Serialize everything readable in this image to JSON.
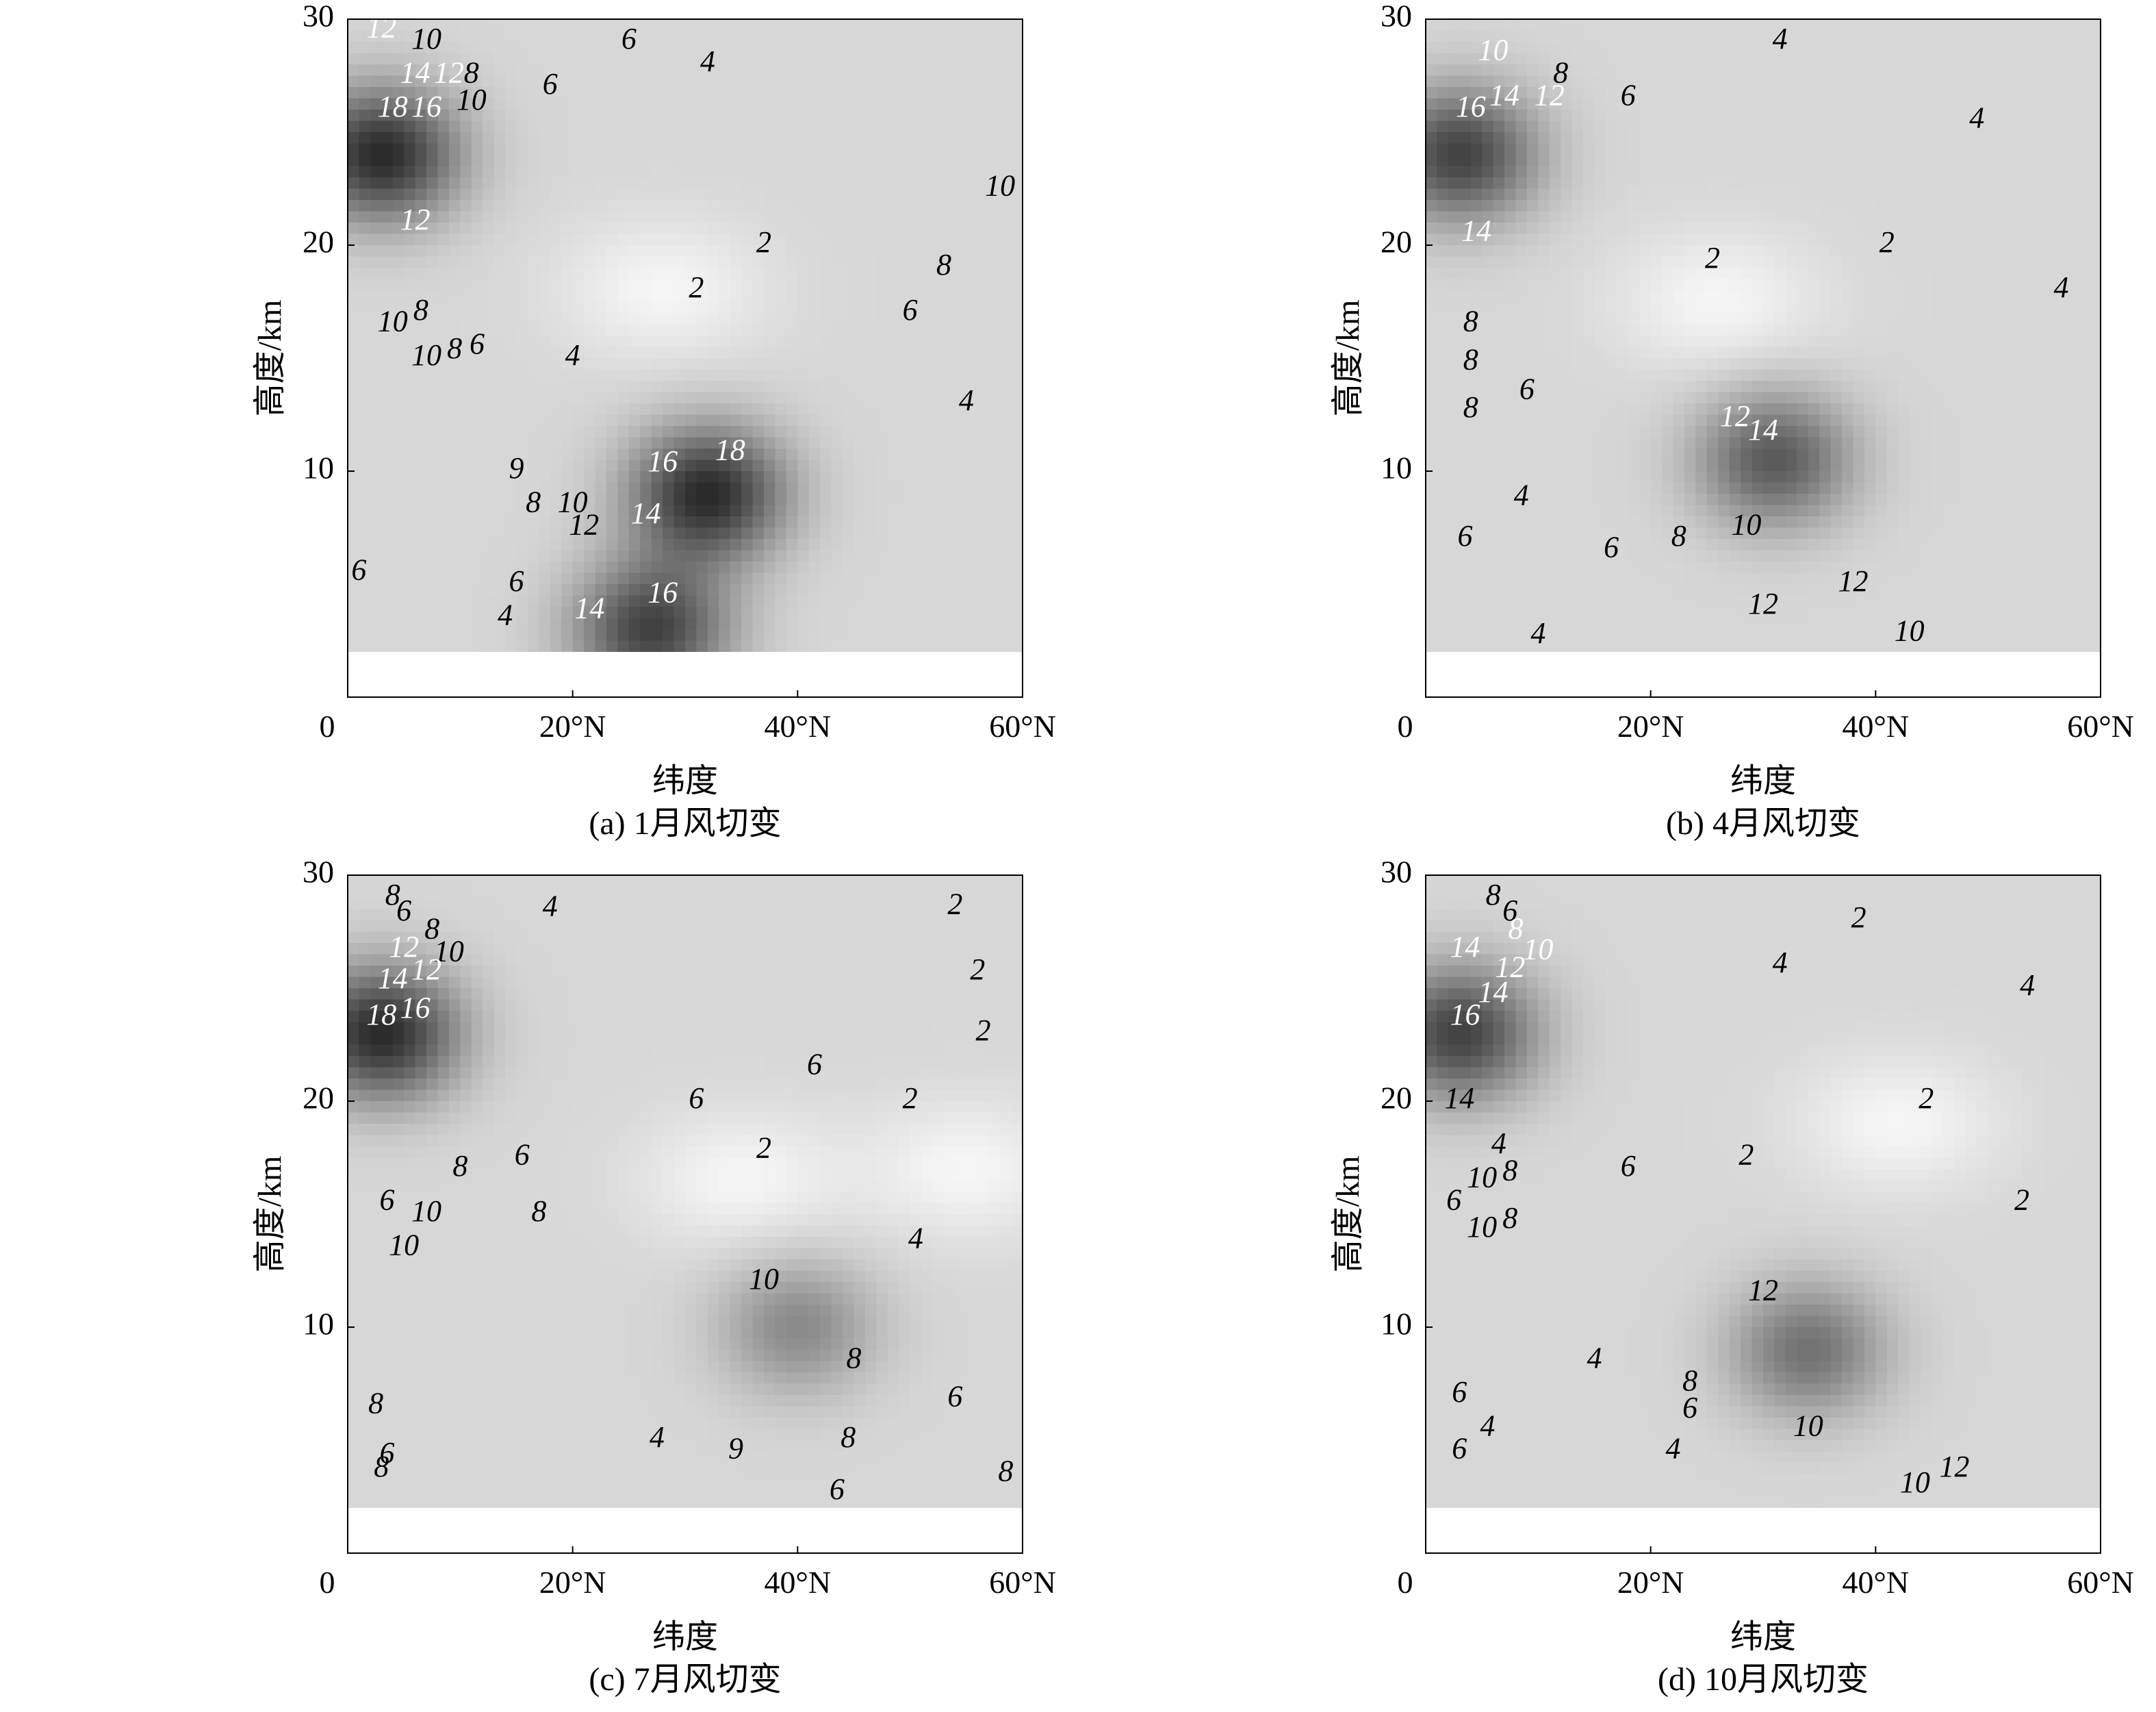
{
  "chart_data": [
    {
      "type": "contour",
      "caption": "(a) 1月风切变",
      "xlabel": "纬度",
      "ylabel": "高度/km",
      "xlim": [
        0,
        60
      ],
      "ylim": [
        0,
        30
      ],
      "xticks": [
        "0",
        "20°N",
        "40°N",
        "60°N"
      ],
      "yticks": [
        "10",
        "20",
        "30"
      ],
      "contour_levels": [
        2,
        4,
        6,
        8,
        10,
        12,
        14,
        16,
        18
      ],
      "maxima": [
        {
          "lat": 3,
          "alt": 24,
          "value": 18
        },
        {
          "lat": 32,
          "alt": 9,
          "value": 18
        },
        {
          "lat": 27,
          "alt": 3,
          "value": 16
        }
      ],
      "minima": [
        {
          "lat": 28,
          "alt": 18,
          "value": 2
        }
      ],
      "labels": [
        {
          "text": "12",
          "lat": 3,
          "alt": 29.5,
          "light": true
        },
        {
          "text": "10",
          "lat": 7,
          "alt": 29,
          "light": false
        },
        {
          "text": "6",
          "lat": 25,
          "alt": 29,
          "light": false
        },
        {
          "text": "14",
          "lat": 6,
          "alt": 27.5,
          "light": true
        },
        {
          "text": "12",
          "lat": 9,
          "alt": 27.5,
          "light": true
        },
        {
          "text": "8",
          "lat": 11,
          "alt": 27.5,
          "light": false
        },
        {
          "text": "4",
          "lat": 32,
          "alt": 28,
          "light": false
        },
        {
          "text": "6",
          "lat": 18,
          "alt": 27,
          "light": false
        },
        {
          "text": "18",
          "lat": 4,
          "alt": 26,
          "light": true
        },
        {
          "text": "16",
          "lat": 7,
          "alt": 26,
          "light": true
        },
        {
          "text": "10",
          "lat": 11,
          "alt": 26.3,
          "light": false
        },
        {
          "text": "10",
          "lat": 58,
          "alt": 22.5,
          "light": false
        },
        {
          "text": "12",
          "lat": 6,
          "alt": 21,
          "light": true
        },
        {
          "text": "2",
          "lat": 37,
          "alt": 20,
          "light": false
        },
        {
          "text": "8",
          "lat": 53,
          "alt": 19,
          "light": false
        },
        {
          "text": "2",
          "lat": 31,
          "alt": 18,
          "light": false
        },
        {
          "text": "10",
          "lat": 4,
          "alt": 16.5,
          "light": false
        },
        {
          "text": "8",
          "lat": 6.5,
          "alt": 17,
          "light": false
        },
        {
          "text": "6",
          "lat": 50,
          "alt": 17,
          "light": false
        },
        {
          "text": "10",
          "lat": 7,
          "alt": 15,
          "light": false
        },
        {
          "text": "8",
          "lat": 9.5,
          "alt": 15.3,
          "light": false
        },
        {
          "text": "6",
          "lat": 11.5,
          "alt": 15.5,
          "light": false
        },
        {
          "text": "4",
          "lat": 20,
          "alt": 15,
          "light": false
        },
        {
          "text": "4",
          "lat": 55,
          "alt": 13,
          "light": false
        },
        {
          "text": "16",
          "lat": 28,
          "alt": 10.3,
          "light": true
        },
        {
          "text": "18",
          "lat": 34,
          "alt": 10.8,
          "light": true
        },
        {
          "text": "9",
          "lat": 15,
          "alt": 10,
          "light": false
        },
        {
          "text": "14",
          "lat": 26.5,
          "alt": 8,
          "light": true
        },
        {
          "text": "10",
          "lat": 20,
          "alt": 8.5,
          "light": false
        },
        {
          "text": "12",
          "lat": 21,
          "alt": 7.5,
          "light": false
        },
        {
          "text": "8",
          "lat": 16.5,
          "alt": 8.5,
          "light": false
        },
        {
          "text": "6",
          "lat": 1,
          "alt": 5.5,
          "light": false
        },
        {
          "text": "6",
          "lat": 15,
          "alt": 5,
          "light": false
        },
        {
          "text": "4",
          "lat": 14,
          "alt": 3.5,
          "light": false
        },
        {
          "text": "14",
          "lat": 21.5,
          "alt": 3.8,
          "light": true
        },
        {
          "text": "16",
          "lat": 28,
          "alt": 4.5,
          "light": true
        }
      ]
    },
    {
      "type": "contour",
      "caption": "(b) 4月风切变",
      "xlabel": "纬度",
      "ylabel": "高度/km",
      "xlim": [
        0,
        60
      ],
      "ylim": [
        0,
        30
      ],
      "xticks": [
        "0",
        "20°N",
        "40°N",
        "60°N"
      ],
      "yticks": [
        "10",
        "20",
        "30"
      ],
      "contour_levels": [
        2,
        4,
        6,
        8,
        10,
        12,
        14,
        16
      ],
      "maxima": [
        {
          "lat": 3,
          "alt": 24,
          "value": 16
        },
        {
          "lat": 31,
          "alt": 10.5,
          "value": 14
        }
      ],
      "minima": [
        {
          "lat": 26,
          "alt": 17.5,
          "value": 2
        }
      ],
      "labels": [
        {
          "text": "4",
          "lat": 31.5,
          "alt": 29,
          "light": false
        },
        {
          "text": "10",
          "lat": 6,
          "alt": 28.5,
          "light": true
        },
        {
          "text": "8",
          "lat": 12,
          "alt": 27.5,
          "light": false
        },
        {
          "text": "14",
          "lat": 7,
          "alt": 26.5,
          "light": true
        },
        {
          "text": "12",
          "lat": 11,
          "alt": 26.5,
          "light": true
        },
        {
          "text": "16",
          "lat": 4,
          "alt": 26,
          "light": true
        },
        {
          "text": "6",
          "lat": 18,
          "alt": 26.5,
          "light": false
        },
        {
          "text": "4",
          "lat": 49,
          "alt": 25.5,
          "light": false
        },
        {
          "text": "14",
          "lat": 4.5,
          "alt": 20.5,
          "light": true
        },
        {
          "text": "2",
          "lat": 25.5,
          "alt": 19.3,
          "light": false
        },
        {
          "text": "2",
          "lat": 41,
          "alt": 20,
          "light": false
        },
        {
          "text": "4",
          "lat": 56.5,
          "alt": 18,
          "light": false
        },
        {
          "text": "8",
          "lat": 4,
          "alt": 16.5,
          "light": false
        },
        {
          "text": "8",
          "lat": 4,
          "alt": 14.8,
          "light": false
        },
        {
          "text": "6",
          "lat": 9,
          "alt": 13.5,
          "light": false
        },
        {
          "text": "8",
          "lat": 4,
          "alt": 12.7,
          "light": false
        },
        {
          "text": "12",
          "lat": 27.5,
          "alt": 12.3,
          "light": true
        },
        {
          "text": "14",
          "lat": 30,
          "alt": 11.7,
          "light": true
        },
        {
          "text": "4",
          "lat": 8.5,
          "alt": 8.8,
          "light": false
        },
        {
          "text": "6",
          "lat": 3.5,
          "alt": 7,
          "light": false
        },
        {
          "text": "6",
          "lat": 16.5,
          "alt": 6.5,
          "light": false
        },
        {
          "text": "8",
          "lat": 22.5,
          "alt": 7,
          "light": false
        },
        {
          "text": "10",
          "lat": 28.5,
          "alt": 7.5,
          "light": false
        },
        {
          "text": "12",
          "lat": 38,
          "alt": 5,
          "light": false
        },
        {
          "text": "12",
          "lat": 30,
          "alt": 4,
          "light": false
        },
        {
          "text": "4",
          "lat": 10,
          "alt": 2.7,
          "light": false
        },
        {
          "text": "10",
          "lat": 43,
          "alt": 2.8,
          "light": false
        }
      ]
    },
    {
      "type": "contour",
      "caption": "(c) 7月风切变",
      "xlabel": "纬度",
      "ylabel": "高度/km",
      "xlim": [
        0,
        60
      ],
      "ylim": [
        0,
        30
      ],
      "xticks": [
        "0",
        "20°N",
        "40°N",
        "60°N"
      ],
      "yticks": [
        "10",
        "20",
        "30"
      ],
      "contour_levels": [
        2,
        4,
        6,
        8,
        10,
        12,
        14,
        16,
        18
      ],
      "maxima": [
        {
          "lat": 3,
          "alt": 23,
          "value": 18
        },
        {
          "lat": 40,
          "alt": 10,
          "value": 10
        }
      ],
      "minima": [
        {
          "lat": 55,
          "alt": 17,
          "value": 2
        },
        {
          "lat": 35,
          "alt": 16.5,
          "value": 2
        }
      ],
      "labels": [
        {
          "text": "8",
          "lat": 4,
          "alt": 29,
          "light": false
        },
        {
          "text": "6",
          "lat": 5,
          "alt": 28.3,
          "light": false
        },
        {
          "text": "4",
          "lat": 18,
          "alt": 28.5,
          "light": false
        },
        {
          "text": "2",
          "lat": 54,
          "alt": 28.6,
          "light": false
        },
        {
          "text": "8",
          "lat": 7.5,
          "alt": 27.5,
          "light": false
        },
        {
          "text": "10",
          "lat": 9,
          "alt": 26.5,
          "light": false
        },
        {
          "text": "12",
          "lat": 5,
          "alt": 26.7,
          "light": true
        },
        {
          "text": "12",
          "lat": 7,
          "alt": 25.7,
          "light": true
        },
        {
          "text": "2",
          "lat": 56,
          "alt": 25.7,
          "light": false
        },
        {
          "text": "14",
          "lat": 4,
          "alt": 25.3,
          "light": true
        },
        {
          "text": "16",
          "lat": 6,
          "alt": 24,
          "light": true
        },
        {
          "text": "18",
          "lat": 3,
          "alt": 23.7,
          "light": true
        },
        {
          "text": "2",
          "lat": 56.5,
          "alt": 23,
          "light": false
        },
        {
          "text": "6",
          "lat": 41.5,
          "alt": 21.5,
          "light": false
        },
        {
          "text": "6",
          "lat": 31,
          "alt": 20,
          "light": false
        },
        {
          "text": "2",
          "lat": 50,
          "alt": 20,
          "light": false
        },
        {
          "text": "2",
          "lat": 37,
          "alt": 17.8,
          "light": false
        },
        {
          "text": "6",
          "lat": 15.5,
          "alt": 17.5,
          "light": false
        },
        {
          "text": "8",
          "lat": 10,
          "alt": 17,
          "light": false
        },
        {
          "text": "6",
          "lat": 3.5,
          "alt": 15.5,
          "light": false
        },
        {
          "text": "10",
          "lat": 7,
          "alt": 15,
          "light": false
        },
        {
          "text": "8",
          "lat": 17,
          "alt": 15,
          "light": false
        },
        {
          "text": "4",
          "lat": 50.5,
          "alt": 13.8,
          "light": false
        },
        {
          "text": "10",
          "lat": 5,
          "alt": 13.5,
          "light": false
        },
        {
          "text": "10",
          "lat": 37,
          "alt": 12,
          "light": false
        },
        {
          "text": "8",
          "lat": 45,
          "alt": 8.5,
          "light": false
        },
        {
          "text": "8",
          "lat": 2.5,
          "alt": 6.5,
          "light": false
        },
        {
          "text": "6",
          "lat": 54,
          "alt": 6.8,
          "light": false
        },
        {
          "text": "8",
          "lat": 44.5,
          "alt": 5,
          "light": false
        },
        {
          "text": "4",
          "lat": 27.5,
          "alt": 5,
          "light": false
        },
        {
          "text": "9",
          "lat": 34.5,
          "alt": 4.5,
          "light": false
        },
        {
          "text": "6",
          "lat": 3.5,
          "alt": 4.3,
          "light": false
        },
        {
          "text": "8",
          "lat": 3,
          "alt": 3.7,
          "light": false
        },
        {
          "text": "8",
          "lat": 58.5,
          "alt": 3.5,
          "light": false
        },
        {
          "text": "6",
          "lat": 43.5,
          "alt": 2.7,
          "light": false
        }
      ]
    },
    {
      "type": "contour",
      "caption": "(d) 10月风切变",
      "xlabel": "纬度",
      "ylabel": "高度/km",
      "xlim": [
        0,
        60
      ],
      "ylim": [
        0,
        30
      ],
      "xticks": [
        "0",
        "20°N",
        "40°N",
        "60°N"
      ],
      "yticks": [
        "10",
        "20",
        "30"
      ],
      "contour_levels": [
        2,
        4,
        6,
        8,
        10,
        12,
        14,
        16
      ],
      "maxima": [
        {
          "lat": 3,
          "alt": 23,
          "value": 16
        },
        {
          "lat": 34,
          "alt": 9,
          "value": 12
        }
      ],
      "minima": [
        {
          "lat": 42,
          "alt": 19,
          "value": 2
        }
      ],
      "labels": [
        {
          "text": "8",
          "lat": 6,
          "alt": 29,
          "light": false
        },
        {
          "text": "6",
          "lat": 7.5,
          "alt": 28.3,
          "light": false
        },
        {
          "text": "2",
          "lat": 38.5,
          "alt": 28,
          "light": false
        },
        {
          "text": "8",
          "lat": 8,
          "alt": 27.5,
          "light": true
        },
        {
          "text": "10",
          "lat": 10,
          "alt": 26.6,
          "light": true
        },
        {
          "text": "14",
          "lat": 3.5,
          "alt": 26.7,
          "light": true
        },
        {
          "text": "12",
          "lat": 7.5,
          "alt": 25.8,
          "light": true
        },
        {
          "text": "4",
          "lat": 31.5,
          "alt": 26,
          "light": false
        },
        {
          "text": "14",
          "lat": 6,
          "alt": 24.7,
          "light": true
        },
        {
          "text": "4",
          "lat": 53.5,
          "alt": 25,
          "light": false
        },
        {
          "text": "16",
          "lat": 3.5,
          "alt": 23.7,
          "light": true
        },
        {
          "text": "14",
          "lat": 3,
          "alt": 20,
          "light": false
        },
        {
          "text": "2",
          "lat": 44.5,
          "alt": 20,
          "light": false
        },
        {
          "text": "4",
          "lat": 6.5,
          "alt": 18,
          "light": false
        },
        {
          "text": "2",
          "lat": 28.5,
          "alt": 17.5,
          "light": false
        },
        {
          "text": "10",
          "lat": 5,
          "alt": 16.5,
          "light": false
        },
        {
          "text": "8",
          "lat": 7.5,
          "alt": 16.8,
          "light": false
        },
        {
          "text": "6",
          "lat": 18,
          "alt": 17,
          "light": false
        },
        {
          "text": "6",
          "lat": 2.5,
          "alt": 15.5,
          "light": false
        },
        {
          "text": "2",
          "lat": 53,
          "alt": 15.5,
          "light": false
        },
        {
          "text": "10",
          "lat": 5,
          "alt": 14.3,
          "light": false
        },
        {
          "text": "8",
          "lat": 7.5,
          "alt": 14.7,
          "light": false
        },
        {
          "text": "12",
          "lat": 30,
          "alt": 11.5,
          "light": false
        },
        {
          "text": "4",
          "lat": 15,
          "alt": 8.5,
          "light": false
        },
        {
          "text": "8",
          "lat": 23.5,
          "alt": 7.5,
          "light": false
        },
        {
          "text": "6",
          "lat": 3,
          "alt": 7,
          "light": false
        },
        {
          "text": "6",
          "lat": 23.5,
          "alt": 6.3,
          "light": false
        },
        {
          "text": "4",
          "lat": 5.5,
          "alt": 5.5,
          "light": false
        },
        {
          "text": "10",
          "lat": 34,
          "alt": 5.5,
          "light": false
        },
        {
          "text": "6",
          "lat": 3,
          "alt": 4.5,
          "light": false
        },
        {
          "text": "4",
          "lat": 22,
          "alt": 4.5,
          "light": false
        },
        {
          "text": "12",
          "lat": 47,
          "alt": 3.7,
          "light": false
        },
        {
          "text": "10",
          "lat": 43.5,
          "alt": 3,
          "light": false
        }
      ]
    }
  ]
}
